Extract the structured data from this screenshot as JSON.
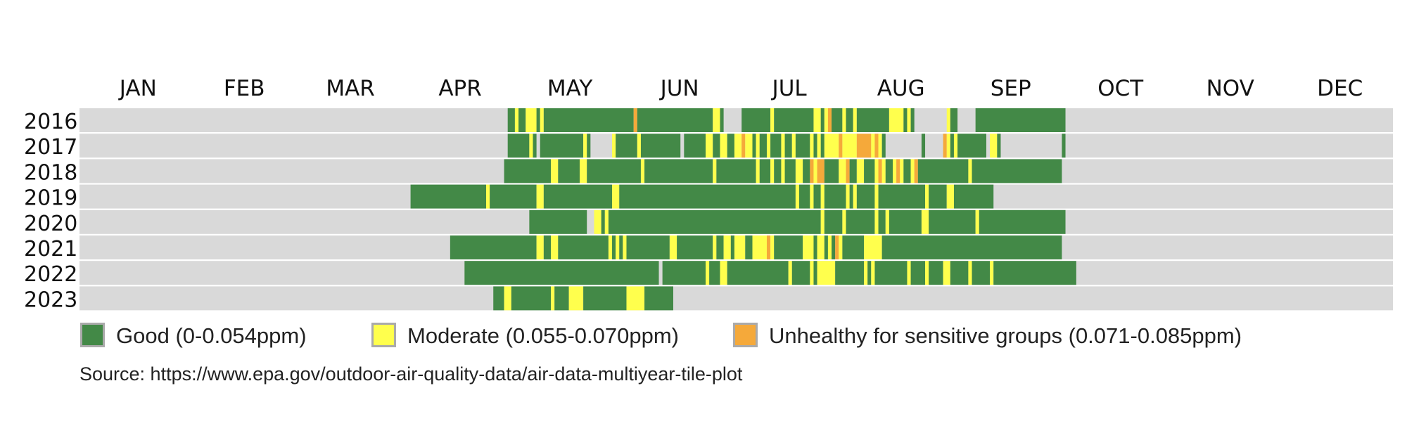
{
  "chart_data": {
    "type": "heatmap",
    "months": [
      "JAN",
      "FEB",
      "MAR",
      "APR",
      "MAY",
      "JUN",
      "JUL",
      "AUG",
      "SEP",
      "OCT",
      "NOV",
      "DEC"
    ],
    "years": [
      "2016",
      "2017",
      "2018",
      "2019",
      "2020",
      "2021",
      "2022",
      "2023"
    ],
    "x_range_days": [
      1,
      366
    ],
    "colors": {
      "background": "#d9d9d9",
      "good": "#438947",
      "moderate": "#ffff4d",
      "usg": "#f5a93a"
    },
    "legend": [
      {
        "key": "good",
        "label": "Good (0-0.054ppm)",
        "color": "#438947"
      },
      {
        "key": "moderate",
        "label": "Moderate (0.055-0.070ppm)",
        "color": "#ffff4d"
      },
      {
        "key": "usg",
        "label": "Unhealthy for sensitive groups (0.071-0.085ppm)",
        "color": "#f5a93a"
      }
    ],
    "source": "Source: https://www.epa.gov/outdoor-air-quality-data/air-data-multiyear-tile-plot",
    "rows": [
      {
        "year": "2016",
        "segments": [
          [
            "good",
            120,
            122
          ],
          [
            "moderate",
            122,
            123
          ],
          [
            "good",
            123,
            125
          ],
          [
            "moderate",
            125,
            128
          ],
          [
            "good",
            128,
            129
          ],
          [
            "moderate",
            129,
            130
          ],
          [
            "good",
            130,
            155
          ],
          [
            "usg",
            155,
            156
          ],
          [
            "good",
            156,
            177
          ],
          [
            "moderate",
            177,
            179
          ],
          [
            "good",
            179,
            180
          ],
          [
            "good",
            185,
            193
          ],
          [
            "moderate",
            193,
            194
          ],
          [
            "good",
            194,
            205
          ],
          [
            "moderate",
            205,
            207
          ],
          [
            "good",
            207,
            208
          ],
          [
            "moderate",
            208,
            209
          ],
          [
            "usg",
            209,
            210
          ],
          [
            "good",
            210,
            213
          ],
          [
            "moderate",
            213,
            214
          ],
          [
            "good",
            214,
            216
          ],
          [
            "moderate",
            216,
            217
          ],
          [
            "good",
            217,
            226
          ],
          [
            "moderate",
            226,
            230
          ],
          [
            "good",
            230,
            231
          ],
          [
            "moderate",
            231,
            232
          ],
          [
            "good",
            232,
            233
          ],
          [
            "moderate",
            242,
            243
          ],
          [
            "good",
            243,
            245
          ],
          [
            "good",
            250,
            275
          ]
        ]
      },
      {
        "year": "2017",
        "segments": [
          [
            "good",
            120,
            126
          ],
          [
            "moderate",
            126,
            127
          ],
          [
            "good",
            127,
            128
          ],
          [
            "good",
            129,
            141
          ],
          [
            "moderate",
            141,
            142
          ],
          [
            "good",
            142,
            143
          ],
          [
            "moderate",
            149,
            150
          ],
          [
            "good",
            150,
            156
          ],
          [
            "moderate",
            156,
            157
          ],
          [
            "good",
            157,
            168
          ],
          [
            "good",
            169,
            175
          ],
          [
            "moderate",
            175,
            177
          ],
          [
            "good",
            177,
            179
          ],
          [
            "moderate",
            179,
            181
          ],
          [
            "good",
            181,
            183
          ],
          [
            "moderate",
            183,
            185
          ],
          [
            "usg",
            185,
            186
          ],
          [
            "moderate",
            186,
            188
          ],
          [
            "good",
            188,
            189
          ],
          [
            "moderate",
            189,
            190
          ],
          [
            "good",
            190,
            192
          ],
          [
            "moderate",
            192,
            193
          ],
          [
            "good",
            193,
            196
          ],
          [
            "moderate",
            196,
            197
          ],
          [
            "good",
            197,
            199
          ],
          [
            "moderate",
            199,
            200
          ],
          [
            "good",
            200,
            204
          ],
          [
            "moderate",
            204,
            205
          ],
          [
            "good",
            205,
            206
          ],
          [
            "moderate",
            206,
            207
          ],
          [
            "good",
            207,
            208
          ],
          [
            "moderate",
            208,
            212
          ],
          [
            "usg",
            212,
            213
          ],
          [
            "moderate",
            213,
            217
          ],
          [
            "usg",
            217,
            221
          ],
          [
            "moderate",
            221,
            222
          ],
          [
            "usg",
            222,
            223
          ],
          [
            "moderate",
            223,
            224
          ],
          [
            "good",
            224,
            225
          ],
          [
            "good",
            235,
            236
          ],
          [
            "usg",
            241,
            242
          ],
          [
            "moderate",
            242,
            243
          ],
          [
            "good",
            243,
            244
          ],
          [
            "moderate",
            244,
            245
          ],
          [
            "good",
            245,
            253
          ],
          [
            "moderate",
            254,
            256
          ],
          [
            "good",
            256,
            257
          ],
          [
            "good",
            274,
            275
          ]
        ]
      },
      {
        "year": "2018",
        "segments": [
          [
            "good",
            119,
            132
          ],
          [
            "moderate",
            132,
            134
          ],
          [
            "good",
            134,
            140
          ],
          [
            "moderate",
            140,
            142
          ],
          [
            "good",
            142,
            157
          ],
          [
            "moderate",
            157,
            158
          ],
          [
            "good",
            158,
            177
          ],
          [
            "moderate",
            177,
            178
          ],
          [
            "good",
            178,
            189
          ],
          [
            "moderate",
            189,
            190
          ],
          [
            "good",
            190,
            193
          ],
          [
            "moderate",
            193,
            194
          ],
          [
            "good",
            194,
            196
          ],
          [
            "moderate",
            196,
            197
          ],
          [
            "good",
            197,
            200
          ],
          [
            "moderate",
            200,
            202
          ],
          [
            "good",
            202,
            204
          ],
          [
            "usg",
            204,
            205
          ],
          [
            "moderate",
            205,
            206
          ],
          [
            "usg",
            206,
            208
          ],
          [
            "good",
            208,
            212
          ],
          [
            "moderate",
            212,
            214
          ],
          [
            "usg",
            214,
            215
          ],
          [
            "good",
            215,
            217
          ],
          [
            "moderate",
            217,
            219
          ],
          [
            "good",
            219,
            222
          ],
          [
            "moderate",
            222,
            223
          ],
          [
            "usg",
            223,
            224
          ],
          [
            "moderate",
            224,
            225
          ],
          [
            "good",
            225,
            227
          ],
          [
            "moderate",
            227,
            228
          ],
          [
            "usg",
            228,
            229
          ],
          [
            "moderate",
            229,
            230
          ],
          [
            "good",
            230,
            232
          ],
          [
            "moderate",
            232,
            233
          ],
          [
            "usg",
            233,
            234
          ],
          [
            "good",
            234,
            248
          ],
          [
            "moderate",
            248,
            249
          ],
          [
            "good",
            249,
            274
          ]
        ]
      },
      {
        "year": "2019",
        "segments": [
          [
            "good",
            93,
            114
          ],
          [
            "moderate",
            114,
            115
          ],
          [
            "good",
            115,
            128
          ],
          [
            "moderate",
            128,
            130
          ],
          [
            "good",
            130,
            149
          ],
          [
            "moderate",
            149,
            151
          ],
          [
            "good",
            151,
            200
          ],
          [
            "moderate",
            200,
            201
          ],
          [
            "good",
            201,
            204
          ],
          [
            "moderate",
            204,
            205
          ],
          [
            "good",
            205,
            207
          ],
          [
            "moderate",
            207,
            208
          ],
          [
            "good",
            208,
            214
          ],
          [
            "moderate",
            214,
            215
          ],
          [
            "good",
            215,
            216
          ],
          [
            "moderate",
            216,
            217
          ],
          [
            "good",
            217,
            222
          ],
          [
            "moderate",
            222,
            223
          ],
          [
            "good",
            223,
            236
          ],
          [
            "moderate",
            236,
            237
          ],
          [
            "good",
            237,
            242
          ],
          [
            "moderate",
            242,
            244
          ],
          [
            "good",
            244,
            255
          ]
        ]
      },
      {
        "year": "2020",
        "segments": [
          [
            "good",
            126,
            142
          ],
          [
            "moderate",
            144,
            146
          ],
          [
            "good",
            146,
            147
          ],
          [
            "moderate",
            147,
            148
          ],
          [
            "good",
            148,
            207
          ],
          [
            "moderate",
            207,
            208
          ],
          [
            "good",
            208,
            213
          ],
          [
            "moderate",
            213,
            214
          ],
          [
            "good",
            214,
            222
          ],
          [
            "moderate",
            222,
            223
          ],
          [
            "good",
            223,
            225
          ],
          [
            "moderate",
            225,
            226
          ],
          [
            "good",
            226,
            235
          ],
          [
            "moderate",
            235,
            237
          ],
          [
            "good",
            237,
            250
          ],
          [
            "moderate",
            250,
            251
          ],
          [
            "good",
            251,
            275
          ]
        ]
      },
      {
        "year": "2021",
        "segments": [
          [
            "good",
            104,
            128
          ],
          [
            "moderate",
            128,
            130
          ],
          [
            "good",
            130,
            132
          ],
          [
            "moderate",
            132,
            134
          ],
          [
            "good",
            134,
            148
          ],
          [
            "moderate",
            148,
            149
          ],
          [
            "good",
            149,
            150
          ],
          [
            "moderate",
            150,
            151
          ],
          [
            "good",
            151,
            152
          ],
          [
            "moderate",
            152,
            153
          ],
          [
            "good",
            153,
            165
          ],
          [
            "moderate",
            165,
            167
          ],
          [
            "good",
            167,
            177
          ],
          [
            "moderate",
            177,
            178
          ],
          [
            "good",
            178,
            180
          ],
          [
            "moderate",
            180,
            182
          ],
          [
            "good",
            182,
            183
          ],
          [
            "moderate",
            183,
            186
          ],
          [
            "good",
            186,
            188
          ],
          [
            "moderate",
            188,
            192
          ],
          [
            "usg",
            192,
            193
          ],
          [
            "moderate",
            193,
            194
          ],
          [
            "good",
            194,
            202
          ],
          [
            "moderate",
            202,
            205
          ],
          [
            "good",
            205,
            206
          ],
          [
            "moderate",
            206,
            208
          ],
          [
            "good",
            208,
            209
          ],
          [
            "moderate",
            209,
            210
          ],
          [
            "good",
            210,
            211
          ],
          [
            "usg",
            211,
            212
          ],
          [
            "moderate",
            212,
            213
          ],
          [
            "good",
            213,
            219
          ],
          [
            "moderate",
            219,
            224
          ],
          [
            "good",
            224,
            274
          ]
        ]
      },
      {
        "year": "2022",
        "segments": [
          [
            "good",
            108,
            162
          ],
          [
            "good",
            163,
            175
          ],
          [
            "moderate",
            175,
            176
          ],
          [
            "good",
            176,
            179
          ],
          [
            "moderate",
            179,
            181
          ],
          [
            "good",
            181,
            198
          ],
          [
            "moderate",
            198,
            199
          ],
          [
            "good",
            199,
            204
          ],
          [
            "moderate",
            204,
            205
          ],
          [
            "good",
            205,
            206
          ],
          [
            "moderate",
            206,
            211
          ],
          [
            "good",
            211,
            219
          ],
          [
            "moderate",
            219,
            220
          ],
          [
            "good",
            220,
            221
          ],
          [
            "moderate",
            221,
            222
          ],
          [
            "good",
            222,
            231
          ],
          [
            "moderate",
            231,
            232
          ],
          [
            "good",
            232,
            236
          ],
          [
            "moderate",
            236,
            237
          ],
          [
            "good",
            237,
            241
          ],
          [
            "moderate",
            241,
            243
          ],
          [
            "good",
            243,
            248
          ],
          [
            "moderate",
            248,
            249
          ],
          [
            "good",
            249,
            254
          ],
          [
            "moderate",
            254,
            255
          ],
          [
            "good",
            255,
            278
          ]
        ]
      },
      {
        "year": "2023",
        "segments": [
          [
            "good",
            116,
            119
          ],
          [
            "moderate",
            119,
            121
          ],
          [
            "good",
            121,
            132
          ],
          [
            "moderate",
            132,
            133
          ],
          [
            "good",
            133,
            137
          ],
          [
            "moderate",
            137,
            141
          ],
          [
            "good",
            141,
            153
          ],
          [
            "moderate",
            153,
            158
          ],
          [
            "good",
            158,
            166
          ]
        ]
      }
    ]
  }
}
